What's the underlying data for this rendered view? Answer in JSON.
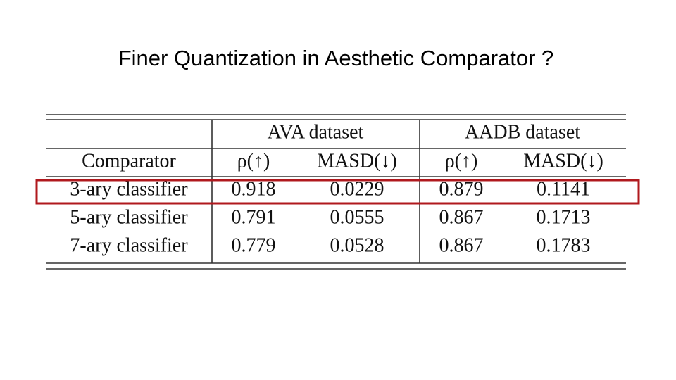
{
  "title": "Finer Quantization in Aesthetic Comparator ?",
  "table": {
    "groups": [
      "AVA dataset",
      "AADB dataset"
    ],
    "header": [
      "Comparator",
      "ρ(↑)",
      "MASD(↓)",
      "ρ(↑)",
      "MASD(↓)"
    ],
    "rows": [
      [
        "3-ary classifier",
        "0.918",
        "0.0229",
        "0.879",
        "0.1141"
      ],
      [
        "5-ary classifier",
        "0.791",
        "0.0555",
        "0.867",
        "0.1713"
      ],
      [
        "7-ary classifier",
        "0.779",
        "0.0528",
        "0.867",
        "0.1783"
      ]
    ]
  }
}
